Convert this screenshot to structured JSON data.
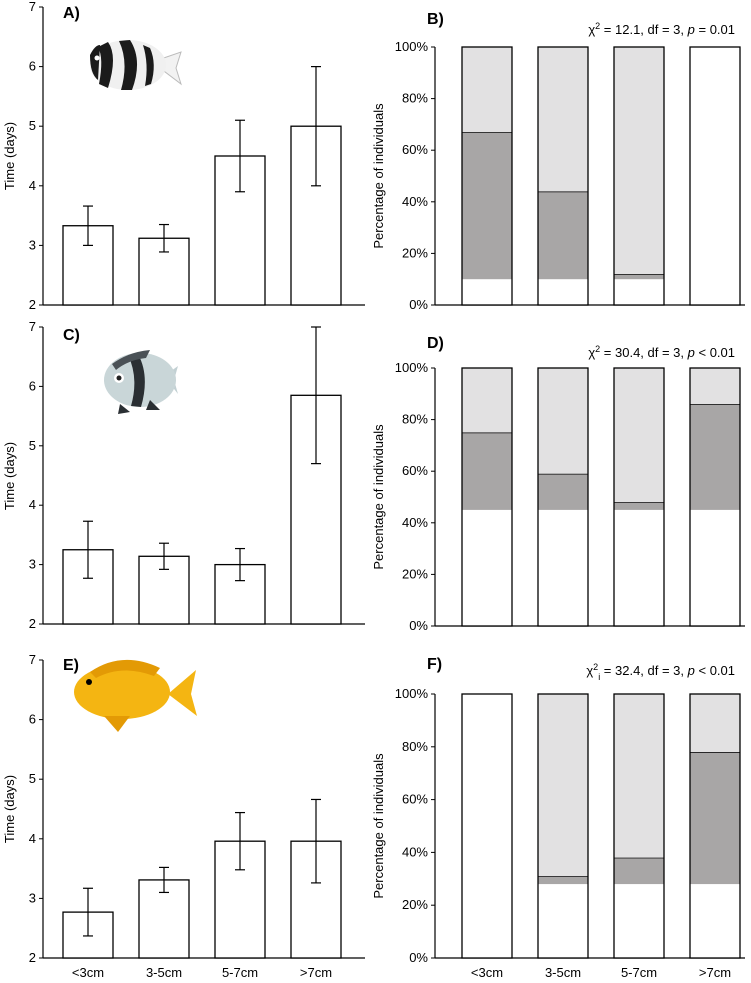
{
  "categories": [
    "<3cm",
    "3-5cm",
    "5-7cm",
    ">7cm"
  ],
  "colors": {
    "white": "#ffffff",
    "mid": "#a8a6a6",
    "light": "#e2e1e2",
    "axis": "#000000",
    "fish_yellow": "#f4b512"
  },
  "fish": [
    {
      "panel": "A",
      "icon": "humbug-damselfish-icon",
      "colors": [
        "#1b1b1b",
        "#f0f0f0"
      ]
    },
    {
      "panel": "C",
      "icon": "three-spot-damselfish-icon",
      "colors": [
        "#2a2f33",
        "#c9d6d8"
      ]
    },
    {
      "panel": "E",
      "icon": "lemon-damselfish-icon",
      "colors": [
        "#f4b512",
        "#e39a05"
      ]
    }
  ],
  "chart_data": [
    {
      "panel": "A)",
      "type": "bar",
      "ylabel": "Time (days)",
      "categories": [
        "<3cm",
        "3-5cm",
        "5-7cm",
        ">7cm"
      ],
      "values": [
        3.33,
        3.12,
        4.5,
        5.0
      ],
      "error": [
        0.33,
        0.23,
        0.6,
        1.0
      ],
      "ylim": [
        2,
        7
      ],
      "yticks": [
        "2",
        "3",
        "4",
        "5",
        "6",
        "7"
      ]
    },
    {
      "panel": "B)",
      "type": "bar",
      "stacked": true,
      "ylabel": "Percentage of individuals",
      "stat": {
        "chi": "χ",
        "sup": "2",
        "sub": "",
        "rest": " = 12.1, df = 3, ",
        "p": "p",
        "pval": " = 0.01"
      },
      "categories": [
        "<3cm",
        "3-5cm",
        "5-7cm",
        ">7cm"
      ],
      "series": [
        {
          "values": [
            10,
            10,
            10,
            100
          ]
        },
        {
          "values": [
            57,
            34,
            2,
            0
          ]
        },
        {
          "values": [
            33,
            56,
            88,
            0
          ]
        }
      ],
      "ylim": [
        0,
        100
      ],
      "yticks": [
        "0%",
        "20%",
        "40%",
        "60%",
        "80%",
        "100%"
      ]
    },
    {
      "panel": "C)",
      "type": "bar",
      "ylabel": "Time (days)",
      "categories": [
        "<3cm",
        "3-5cm",
        "5-7cm",
        ">7cm"
      ],
      "values": [
        3.25,
        3.14,
        3.0,
        5.85
      ],
      "error": [
        0.48,
        0.22,
        0.27,
        1.15
      ],
      "ylim": [
        2,
        7
      ],
      "yticks": [
        "2",
        "3",
        "4",
        "5",
        "6",
        "7"
      ]
    },
    {
      "panel": "D)",
      "type": "bar",
      "stacked": true,
      "ylabel": "Percentage of individuals",
      "stat": {
        "chi": "χ",
        "sup": "2",
        "sub": "",
        "rest": " = 30.4, df = 3, ",
        "p": "p",
        "pval": " < 0.01"
      },
      "categories": [
        "<3cm",
        "3-5cm",
        "5-7cm",
        ">7cm"
      ],
      "series": [
        {
          "values": [
            45,
            45,
            45,
            45
          ]
        },
        {
          "values": [
            30,
            14,
            3,
            41
          ]
        },
        {
          "values": [
            25,
            41,
            52,
            14
          ]
        }
      ],
      "ylim": [
        0,
        100
      ],
      "yticks": [
        "0%",
        "20%",
        "40%",
        "60%",
        "80%",
        "100%"
      ]
    },
    {
      "panel": "E)",
      "type": "bar",
      "ylabel": "Time (days)",
      "categories": [
        "<3cm",
        "3-5cm",
        "5-7cm",
        ">7cm"
      ],
      "values": [
        2.77,
        3.31,
        3.96,
        3.96
      ],
      "error": [
        0.4,
        0.21,
        0.48,
        0.7
      ],
      "ylim": [
        2,
        7
      ],
      "yticks": [
        "2",
        "3",
        "4",
        "5",
        "6",
        "7"
      ]
    },
    {
      "panel": "F)",
      "type": "bar",
      "stacked": true,
      "ylabel": "Percentage of individuals",
      "stat": {
        "chi": "χ",
        "sup": "2",
        "sub": "i",
        "rest": " = 32.4, df = 3, ",
        "p": "p",
        "pval": " < 0.01"
      },
      "categories": [
        "<3cm",
        "3-5cm",
        "5-7cm",
        ">7cm"
      ],
      "series": [
        {
          "values": [
            100,
            28,
            28,
            28
          ]
        },
        {
          "values": [
            0,
            3,
            10,
            50
          ]
        },
        {
          "values": [
            0,
            69,
            62,
            22
          ]
        }
      ],
      "ylim": [
        0,
        100
      ],
      "yticks": [
        "0%",
        "20%",
        "40%",
        "60%",
        "80%",
        "100%"
      ]
    }
  ]
}
